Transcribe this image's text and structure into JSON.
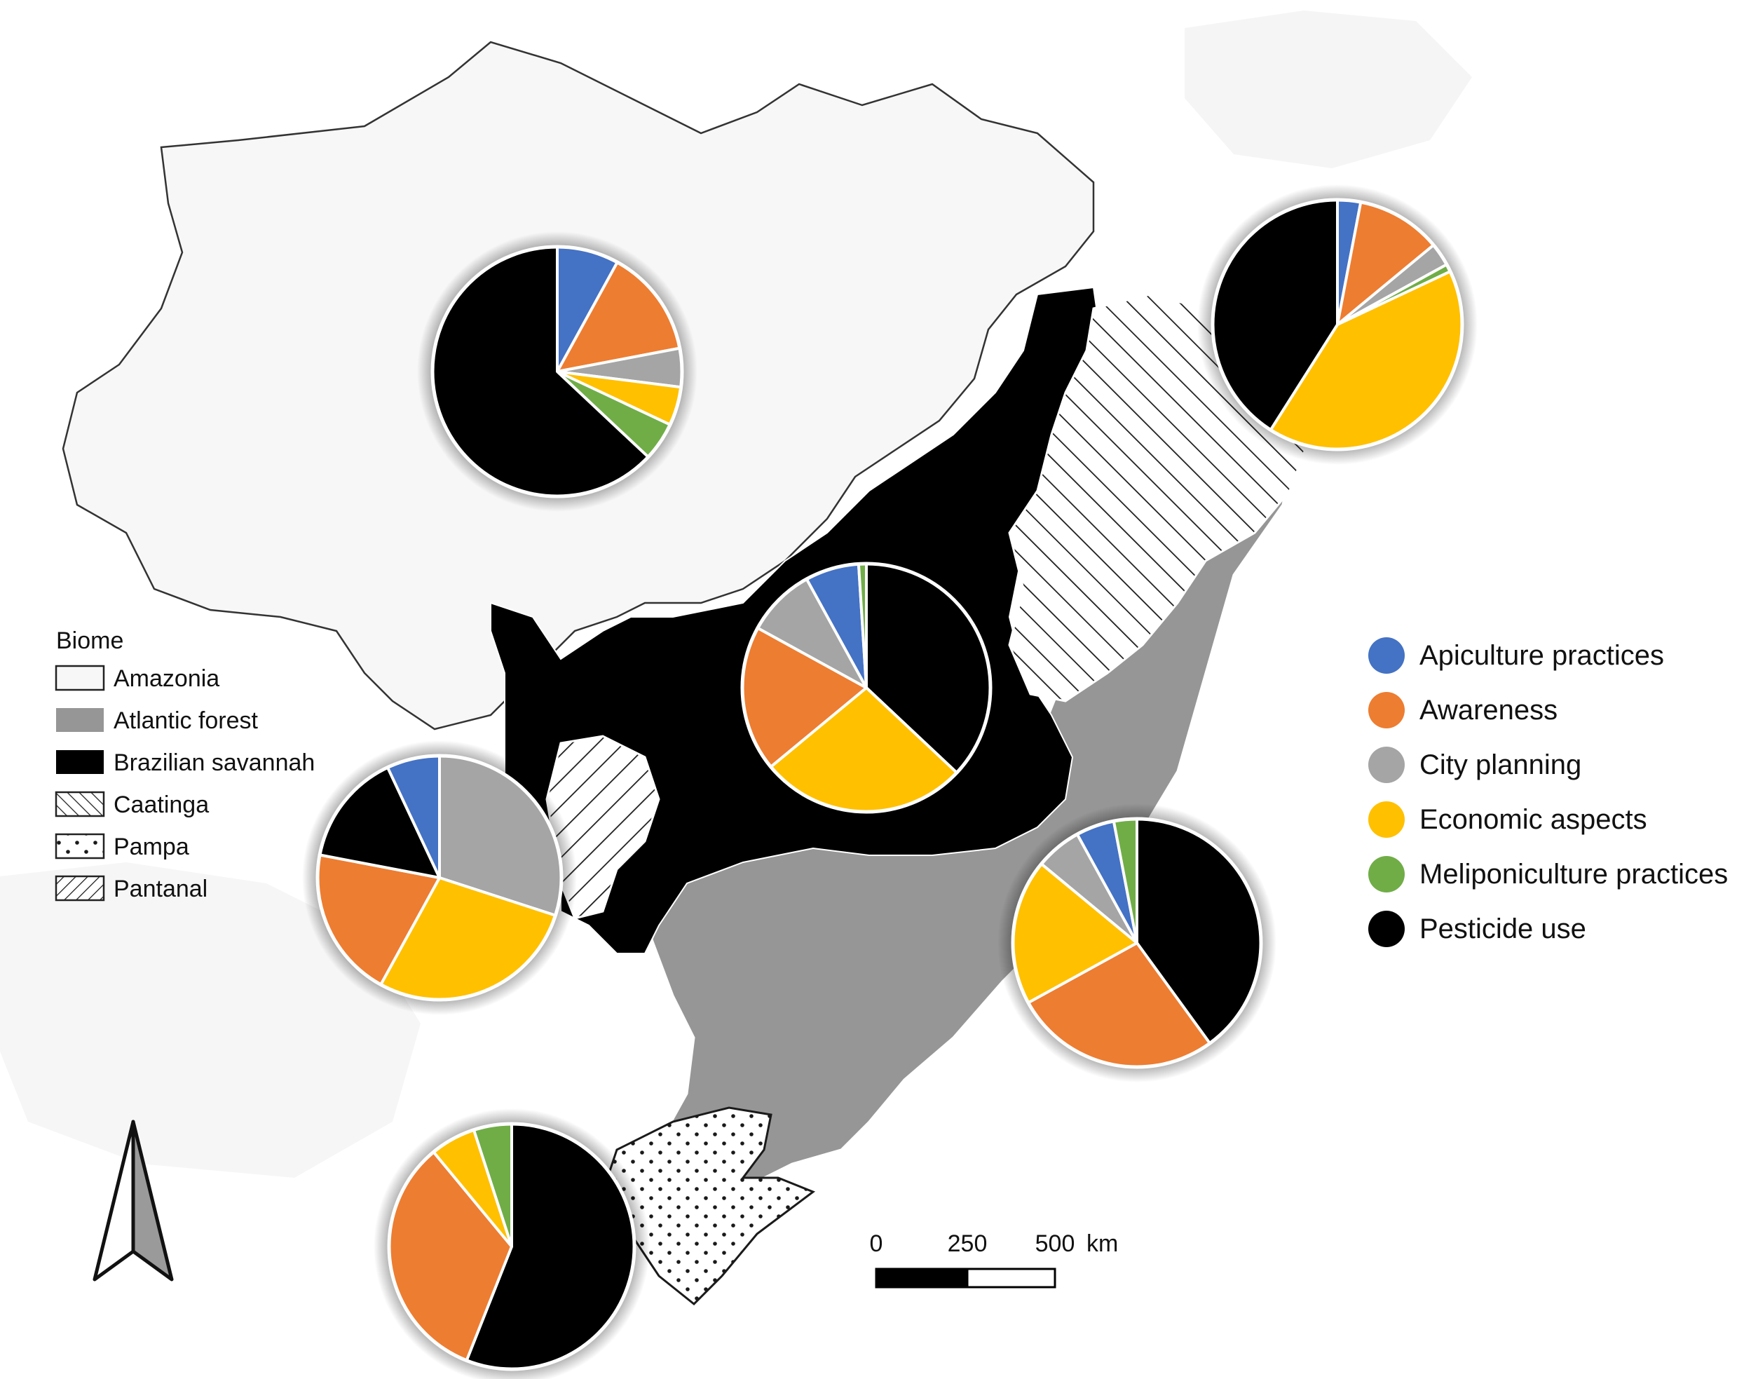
{
  "biome_legend": {
    "title": "Biome",
    "items": [
      {
        "label": "Amazonia",
        "pattern": "light"
      },
      {
        "label": "Atlantic forest",
        "pattern": "gray"
      },
      {
        "label": "Brazilian savannah",
        "pattern": "black"
      },
      {
        "label": "Caatinga",
        "pattern": "diagonal"
      },
      {
        "label": "Pampa",
        "pattern": "dots"
      },
      {
        "label": "Pantanal",
        "pattern": "backdiagonal"
      }
    ]
  },
  "category_legend": {
    "items": [
      {
        "label": "Apiculture practices",
        "color": "#4472C4"
      },
      {
        "label": "Awareness",
        "color": "#ED7D31"
      },
      {
        "label": "City planning",
        "color": "#A5A5A5"
      },
      {
        "label": "Economic aspects",
        "color": "#FFC000"
      },
      {
        "label": "Meliponiculture practices",
        "color": "#70AD47"
      },
      {
        "label": "Pesticide use",
        "color": "#000000"
      }
    ]
  },
  "biome_colors": {
    "Amazonia": "#f7f7f7",
    "Atlantic forest": "#969696",
    "Brazilian savannah": "#000000"
  },
  "scale_bar": {
    "labels": [
      "0",
      "250",
      "500"
    ],
    "unit": "km"
  },
  "north_arrow": {
    "icon": "north-arrow-icon"
  },
  "chart_data": {
    "type": "pie",
    "series": [
      {
        "region": "Amazonia",
        "slices": [
          {
            "category": "Apiculture practices",
            "value": 8
          },
          {
            "category": "Awareness",
            "value": 14
          },
          {
            "category": "City planning",
            "value": 5
          },
          {
            "category": "Economic aspects",
            "value": 5
          },
          {
            "category": "Meliponiculture practices",
            "value": 5
          },
          {
            "category": "Pesticide use",
            "value": 63
          }
        ]
      },
      {
        "region": "Caatinga",
        "slices": [
          {
            "category": "Apiculture practices",
            "value": 3
          },
          {
            "category": "Awareness",
            "value": 11
          },
          {
            "category": "City planning",
            "value": 3
          },
          {
            "category": "Meliponiculture practices",
            "value": 1
          },
          {
            "category": "Economic aspects",
            "value": 41
          },
          {
            "category": "Pesticide use",
            "value": 41
          }
        ]
      },
      {
        "region": "Brazilian savannah",
        "slices": [
          {
            "category": "Pesticide use",
            "value": 37
          },
          {
            "category": "Economic aspects",
            "value": 27
          },
          {
            "category": "Awareness",
            "value": 19
          },
          {
            "category": "City planning",
            "value": 9
          },
          {
            "category": "Apiculture practices",
            "value": 7
          },
          {
            "category": "Meliponiculture practices",
            "value": 1
          }
        ]
      },
      {
        "region": "Pantanal",
        "slices": [
          {
            "category": "City planning",
            "value": 30
          },
          {
            "category": "Economic aspects",
            "value": 28
          },
          {
            "category": "Awareness",
            "value": 20
          },
          {
            "category": "Pesticide use",
            "value": 15
          },
          {
            "category": "Apiculture practices",
            "value": 7
          }
        ]
      },
      {
        "region": "Atlantic forest",
        "slices": [
          {
            "category": "Pesticide use",
            "value": 40
          },
          {
            "category": "Awareness",
            "value": 27
          },
          {
            "category": "Economic aspects",
            "value": 19
          },
          {
            "category": "City planning",
            "value": 6
          },
          {
            "category": "Apiculture practices",
            "value": 5
          },
          {
            "category": "Meliponiculture practices",
            "value": 3
          }
        ]
      },
      {
        "region": "Pampa",
        "slices": [
          {
            "category": "Pesticide use",
            "value": 56
          },
          {
            "category": "Awareness",
            "value": 33
          },
          {
            "category": "Economic aspects",
            "value": 6
          },
          {
            "category": "Meliponiculture practices",
            "value": 5
          }
        ]
      }
    ]
  }
}
